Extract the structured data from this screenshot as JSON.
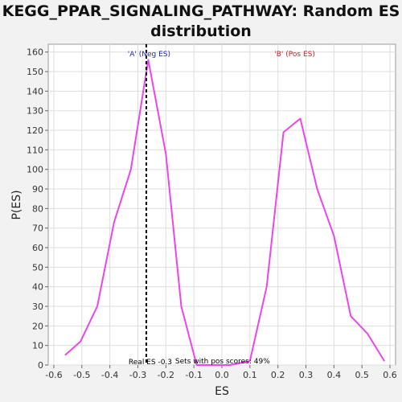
{
  "chart_data": {
    "type": "line",
    "title": "KEGG_PPAR_SIGNALING_PATHWAY: Random ES distribution",
    "xlabel": "ES",
    "ylabel": "P(ES)",
    "xlim": [
      -0.62,
      0.62
    ],
    "ylim": [
      0,
      164
    ],
    "xticks": [
      -0.6,
      -0.5,
      -0.4,
      -0.3,
      -0.2,
      -0.1,
      0.0,
      0.1,
      0.2,
      0.3,
      0.4,
      0.5,
      0.6
    ],
    "xtick_labels": [
      "-0.6",
      "-0.5",
      "-0.4",
      "-0.3",
      "-0.2",
      "-0.1",
      "0.0",
      "0.1",
      "0.2",
      "0.3",
      "0.4",
      "0.5",
      "0.6"
    ],
    "yticks": [
      0,
      10,
      20,
      30,
      40,
      50,
      60,
      70,
      80,
      90,
      100,
      110,
      120,
      130,
      140,
      150,
      160
    ],
    "grid": true,
    "series": [
      {
        "color": "#ee44ee",
        "x": [
          -0.56,
          -0.505,
          -0.445,
          -0.385,
          -0.325,
          -0.263,
          -0.2,
          -0.145,
          -0.09,
          -0.03,
          0.03,
          0.1,
          0.16,
          0.22,
          0.28,
          0.34,
          0.4,
          0.46,
          0.52,
          0.58
        ],
        "y": [
          5,
          12,
          30,
          73,
          100,
          156,
          108,
          30,
          0,
          0,
          0,
          2,
          40,
          119,
          126,
          90,
          66,
          25,
          16,
          2
        ]
      }
    ],
    "real_es": -0.27,
    "annotations": {
      "neg_label": "'A' (Neg ES)",
      "pos_label": "'B' (Pos ES)",
      "real_es_label": "Real ES -0.3",
      "pos_scores_label": "Sets with pos scores: 49%"
    },
    "colors": {
      "neg": "#2222bb",
      "pos": "#cc2222",
      "line": "#ee44ee"
    }
  }
}
